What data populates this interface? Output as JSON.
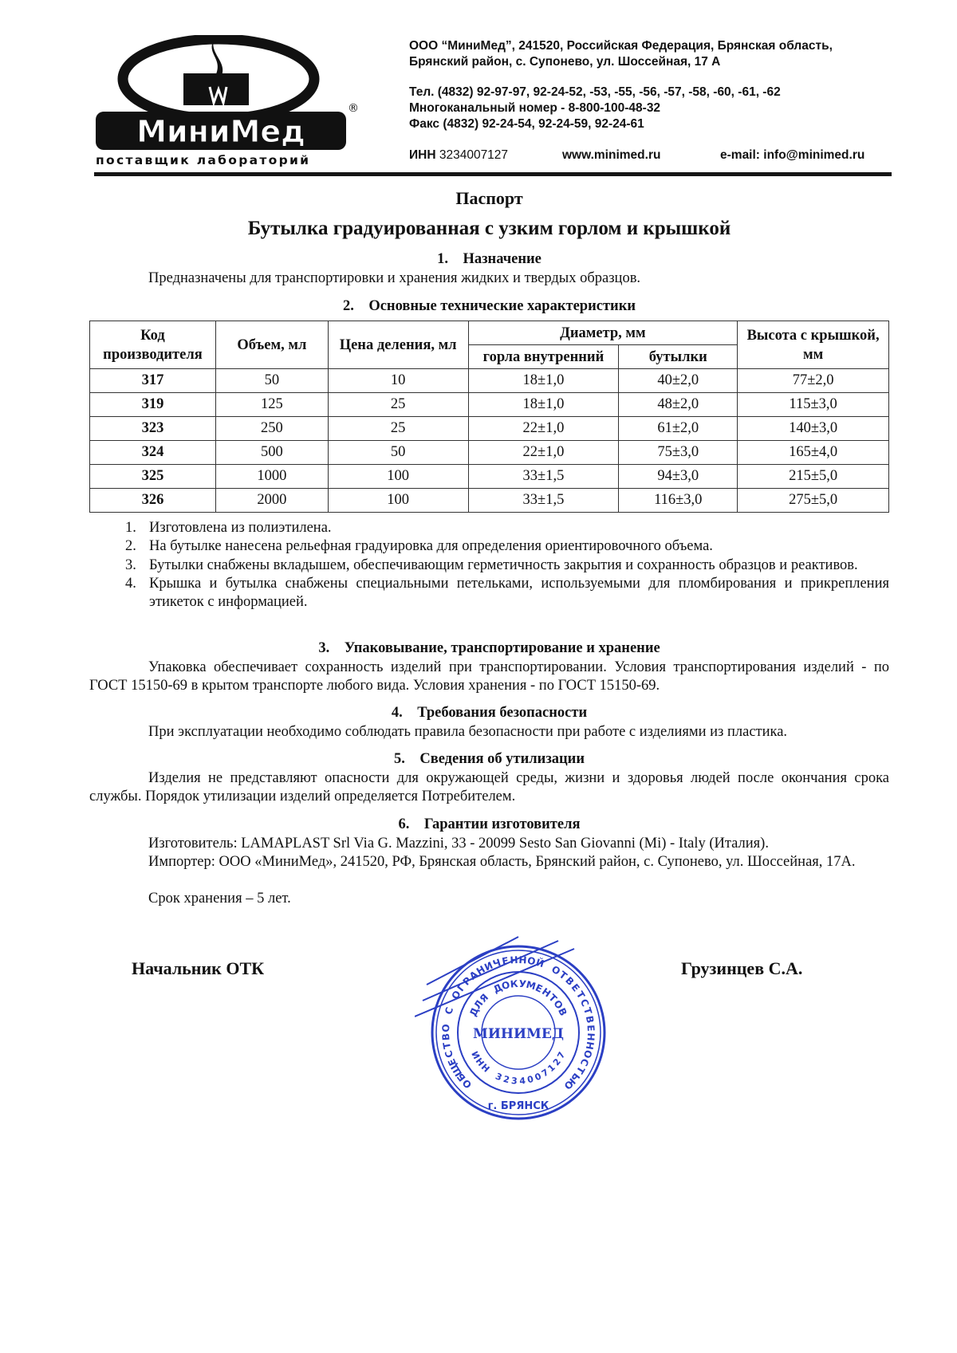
{
  "header": {
    "logo_text": "МиниМед",
    "logo_tagline": "поставщик лабораторий",
    "address_line1": "ООО “МиниМед”, 241520, Российская Федерация, Брянская область,",
    "address_line2": "Брянский район, с. Супонево, ул. Шоссейная, 17 А",
    "phone": "Тел. (4832) 92-97-97, 92-24-52, -53, -55, -56, -57, -58, -60, -61, -62",
    "multichannel": "Многоканальный номер - 8-800-100-48-32",
    "fax": "Факс (4832) 92-24-54, 92-24-59, 92-24-61",
    "inn_label": "ИНН",
    "inn_value": "3234007127",
    "website": "www.minimed.ru",
    "email": "e-mail: info@minimed.ru"
  },
  "document": {
    "doc_type": "Паспорт",
    "title": "Бутылка градуированная с узким горлом и крышкой",
    "sections": [
      {
        "number": "1.",
        "heading": "Назначение",
        "text": "Предназначены для транспортировки и хранения жидких и твердых образцов."
      },
      {
        "number": "2.",
        "heading": "Основные технические характеристики"
      },
      {
        "number": "3.",
        "heading": "Упаковывание, транспортирование и хранение",
        "text": "Упаковка обеспечивает сохранность изделий при транспортировании. Условия транспортирования изделий - по ГОСТ 15150-69 в крытом транспорте любого вида. Условия хранения - по  ГОСТ 15150-69."
      },
      {
        "number": "4.",
        "heading": "Требования безопасности",
        "text": "При эксплуатации необходимо соблюдать правила безопасности при работе с изделиями из пластика."
      },
      {
        "number": "5.",
        "heading": "Сведения об утилизации",
        "text": "Изделия не представляют опасности для окружающей среды, жизни и здоровья людей после окончания срока  службы.  Порядок утилизации изделий определяется  Потребителем."
      },
      {
        "number": "6.",
        "heading": "Гарантии изготовителя",
        "manufacturer": "Изготовитель: LAMAPLAST Srl Via G. Mazzini, 33 - 20099 Sesto San Giovanni (Mi) - Italy (Италия).",
        "importer": "Импортер: ООО «МиниМед», 241520, РФ, Брянская область, Брянский район, с. Супонево, ул. Шоссейная, 17А.",
        "shelf_life": "Срок хранения – 5 лет."
      }
    ],
    "table": {
      "headers": {
        "code": "Код производителя",
        "volume": "Объем, мл",
        "division": "Цена деления, мл",
        "diameter": "Диаметр, мм",
        "neck": "горла внутренний",
        "bottle": "бутылки",
        "height": "Высота с крышкой, мм"
      },
      "rows": [
        [
          "317",
          "50",
          "10",
          "18±1,0",
          "40±2,0",
          "77±2,0"
        ],
        [
          "319",
          "125",
          "25",
          "18±1,0",
          "48±2,0",
          "115±3,0"
        ],
        [
          "323",
          "250",
          "25",
          "22±1,0",
          "61±2,0",
          "140±3,0"
        ],
        [
          "324",
          "500",
          "50",
          "22±1,0",
          "75±3,0",
          "165±4,0"
        ],
        [
          "325",
          "1000",
          "100",
          "33±1,5",
          "94±3,0",
          "215±5,0"
        ],
        [
          "326",
          "2000",
          "100",
          "33±1,5",
          "116±3,0",
          "275±5,0"
        ]
      ]
    },
    "notes": [
      {
        "n": "1.",
        "text": "Изготовлена из полиэтилена."
      },
      {
        "n": "2.",
        "text": "На бутылке нанесена рельефная градуировка для определения ориентировочного объема."
      },
      {
        "n": "3.",
        "text": "Бутылки снабжены вкладышем, обеспечивающим герметичность закрытия и сохранность образцов и реактивов."
      },
      {
        "n": "4.",
        "text": "Крышка и бутылка снабжены специальными петельками, используемыми для пломбирования и прикрепления этикеток с информацией."
      }
    ],
    "signature": {
      "position": "Начальник ОТК",
      "name": "Грузинцев С.А."
    },
    "stamp": {
      "outer_text": "ОБЩЕСТВО С ОГРАНИЧЕННОЙ ОТВЕТСТВЕННОСТЬЮ",
      "inner_text": "ДЛЯ ДОКУМЕНТОВ",
      "center_text": "МИНИМЕД",
      "inn_text": "ИНН 3234007127",
      "city_text": "г. БРЯНСК",
      "color": "#2b3fc4"
    }
  }
}
